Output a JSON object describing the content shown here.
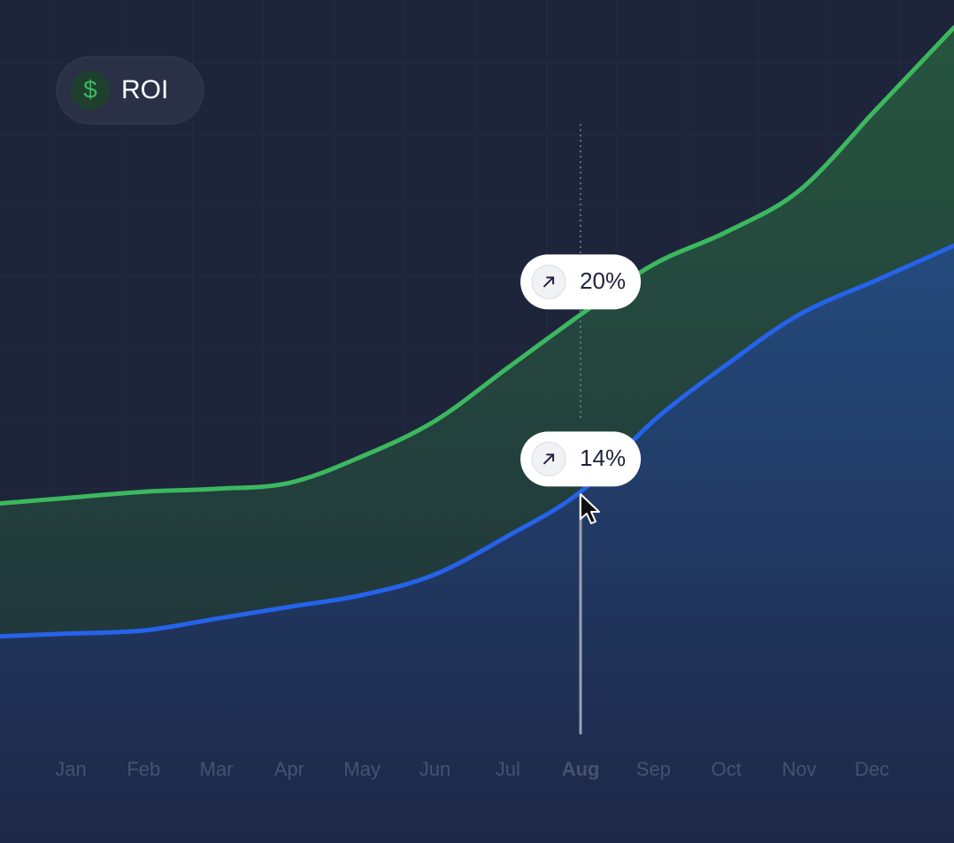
{
  "chart_data": {
    "type": "line",
    "title": "ROI",
    "categories": [
      "Jan",
      "Feb",
      "Mar",
      "Apr",
      "May",
      "Jun",
      "Jul",
      "Aug",
      "Sep",
      "Oct",
      "Nov",
      "Dec"
    ],
    "series": [
      {
        "color": "#3cb85f",
        "values": [
          13.8,
          14.0,
          14.1,
          14.3,
          15.2,
          16.4,
          18.2,
          20.0,
          21.7,
          22.8,
          24.2,
          26.8
        ],
        "value_labels": [
          null,
          null,
          null,
          null,
          null,
          null,
          null,
          "20%",
          null,
          null,
          null,
          null
        ]
      },
      {
        "color": "#2563eb",
        "values": [
          9.2,
          9.3,
          9.7,
          10.1,
          10.5,
          11.2,
          12.5,
          14.0,
          16.4,
          18.3,
          20.0,
          21.1
        ],
        "value_labels": [
          null,
          null,
          null,
          null,
          null,
          null,
          null,
          "14%",
          null,
          null,
          null,
          null
        ]
      }
    ],
    "ylim": [
      0,
      30
    ]
  }
}
